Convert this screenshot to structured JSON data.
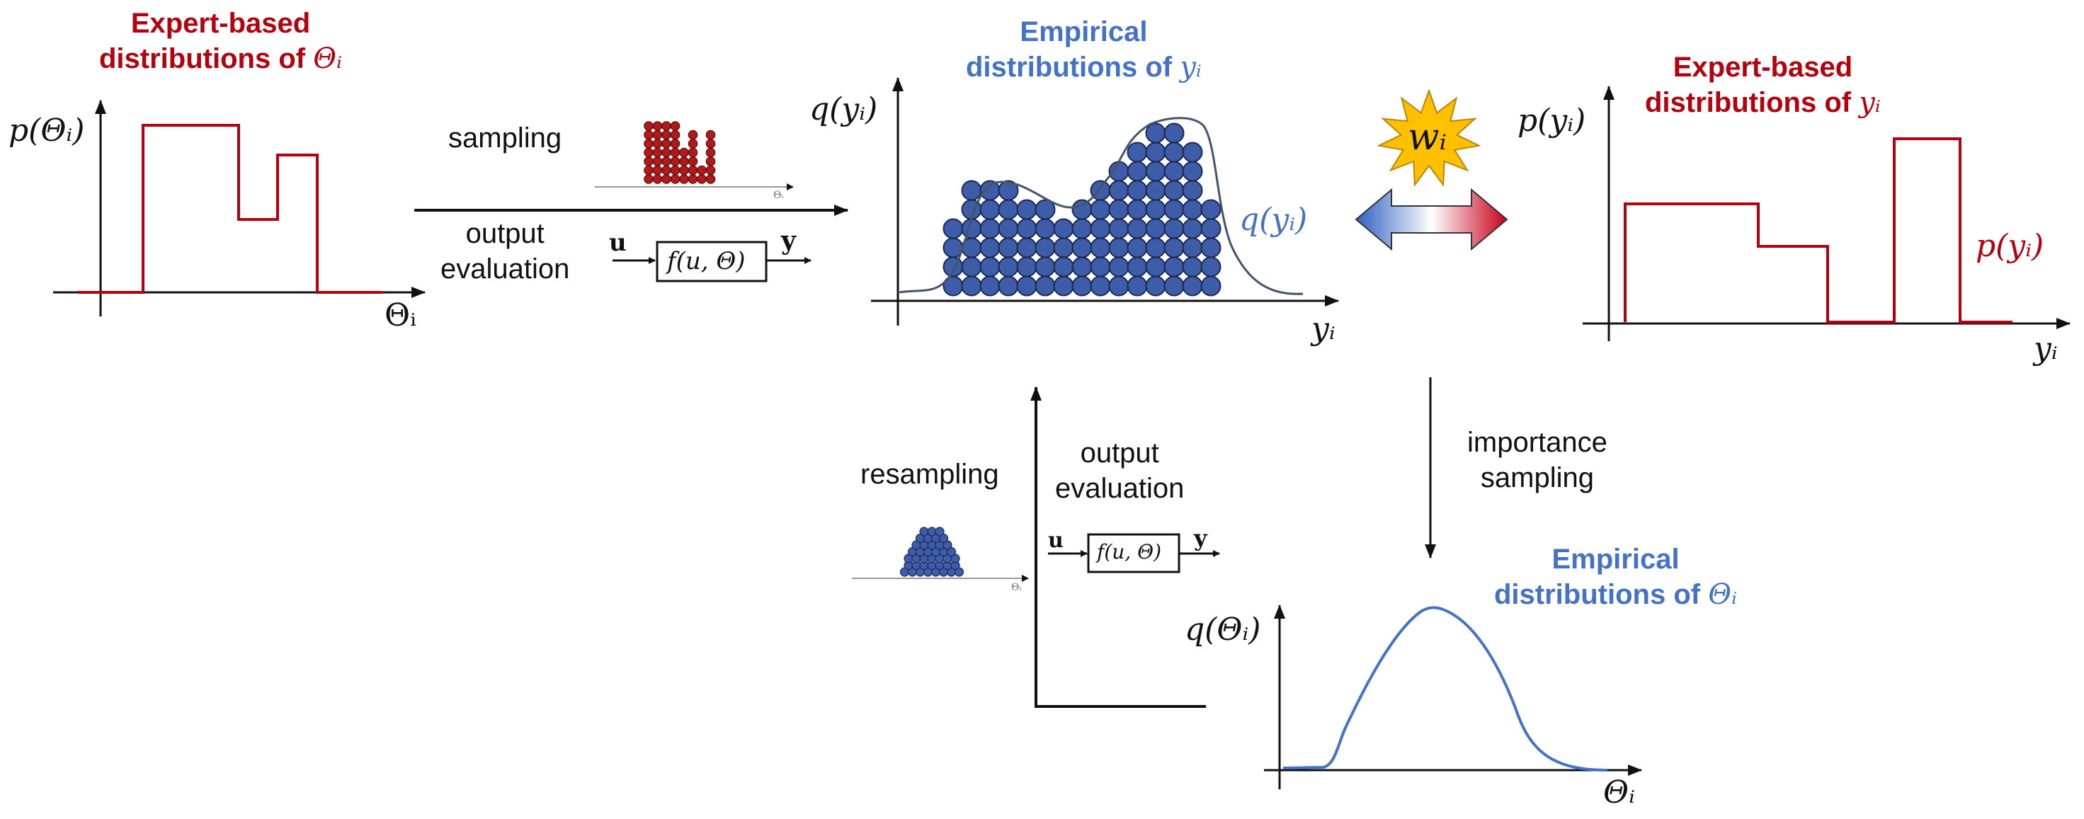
{
  "colors": {
    "red": "#b4000f",
    "blue": "#4472c4",
    "ball_blue": "#3e5ca8",
    "ball_red": "#b01a1a",
    "burst": "#ffc000",
    "axis": "#111111"
  },
  "panel1": {
    "title_line1": "Expert-based",
    "title_line2": "distributions of",
    "symbol": "Θᵢ",
    "ylabel": "p(Θᵢ)",
    "xlabel": "Θᵢ"
  },
  "panel2": {
    "title_line1": "Empirical",
    "title_line2": "distributions of",
    "symbol": "yᵢ",
    "ylabel": "q(yᵢ)",
    "curve_label": "q(yᵢ)",
    "xlabel": "yᵢ"
  },
  "panel3": {
    "title_line1": "Expert-based",
    "title_line2": "distributions of",
    "symbol": "yᵢ",
    "ylabel": "p(yᵢ)",
    "curve_label": "p(yᵢ)",
    "xlabel": "yᵢ"
  },
  "panel4": {
    "title_line1": "Empirical",
    "title_line2": "distributions of",
    "symbol": "Θᵢ",
    "ylabel": "q(Θᵢ)",
    "xlabel": "Θᵢ"
  },
  "top_flow": {
    "sampling": "sampling",
    "output_line1": "output",
    "output_line2": "evaluation",
    "input": "u",
    "function": "f(u, Θ)",
    "output": "y",
    "mini_axis": "Θᵢ"
  },
  "bottom_flow": {
    "resampling": "resampling",
    "output_line1": "output",
    "output_line2": "evaluation",
    "input": "u",
    "function": "f(u, Θ)",
    "output": "y",
    "mini_axis": "Θᵢ"
  },
  "importance": {
    "line1": "importance",
    "line2": "sampling"
  },
  "weight": {
    "label": "wᵢ",
    "icon": "starburst-icon"
  }
}
